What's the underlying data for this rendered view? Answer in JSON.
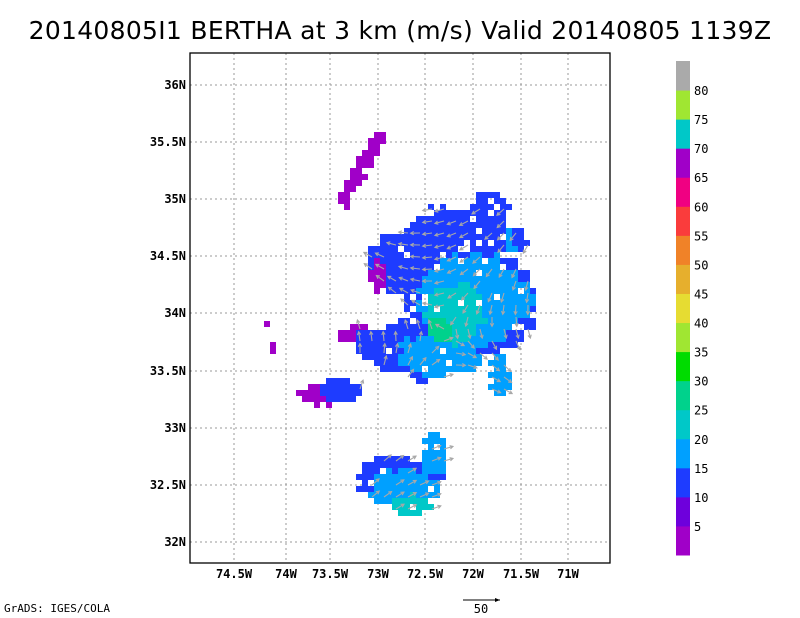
{
  "title": "20140805I1 BERTHA at 3 km (m/s) Valid 20140805 1139Z",
  "credit": "GrADS: IGES/COLA",
  "reference_vector_label": "50",
  "colors": {
    "frame": "#000000",
    "grid": "#9a9a9a",
    "vector": "#a8a8a8"
  },
  "map": {
    "lat_labels": [
      "36N",
      "35.5N",
      "35N",
      "34.5N",
      "34N",
      "33.5N",
      "33N",
      "32.5N",
      "32N"
    ],
    "lon_labels": [
      "74.5W",
      "74W",
      "73.5W",
      "73W",
      "72.5W",
      "72W",
      "71.5W",
      "71W"
    ]
  },
  "colorbar": {
    "labels": [
      "5",
      "10",
      "15",
      "20",
      "25",
      "30",
      "35",
      "40",
      "45",
      "50",
      "55",
      "60",
      "65",
      "70",
      "75",
      "80"
    ],
    "colors": [
      "#a000c8",
      "#6e00dc",
      "#1e3cff",
      "#00a0ff",
      "#00c8c8",
      "#00d28c",
      "#00dc00",
      "#a0e632",
      "#e6dc32",
      "#e6af2d",
      "#f08228",
      "#fa3c3c",
      "#f00082",
      "#a000c8",
      "#00c8c8",
      "#a0e632",
      "#aaaaaa"
    ]
  }
}
